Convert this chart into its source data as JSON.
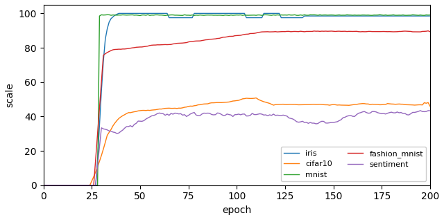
{
  "xlabel": "epoch",
  "ylabel": "scale",
  "xlim": [
    0,
    200
  ],
  "ylim": [
    0,
    105
  ],
  "xticks": [
    0,
    25,
    50,
    75,
    100,
    125,
    150,
    175,
    200
  ],
  "yticks": [
    0,
    20,
    40,
    60,
    80,
    100
  ],
  "legend_labels": [
    "iris",
    "cifar10",
    "mnist",
    "fashion_mnist",
    "sentiment"
  ],
  "colors": {
    "iris": "#1f77b4",
    "cifar10": "#ff7f0e",
    "mnist": "#2ca02c",
    "fashion_mnist": "#d62728",
    "sentiment": "#9467bd"
  },
  "background_color": "#ffffff",
  "figsize": [
    6.4,
    3.18
  ],
  "dpi": 100,
  "seed": 0,
  "linewidth": 1.0
}
